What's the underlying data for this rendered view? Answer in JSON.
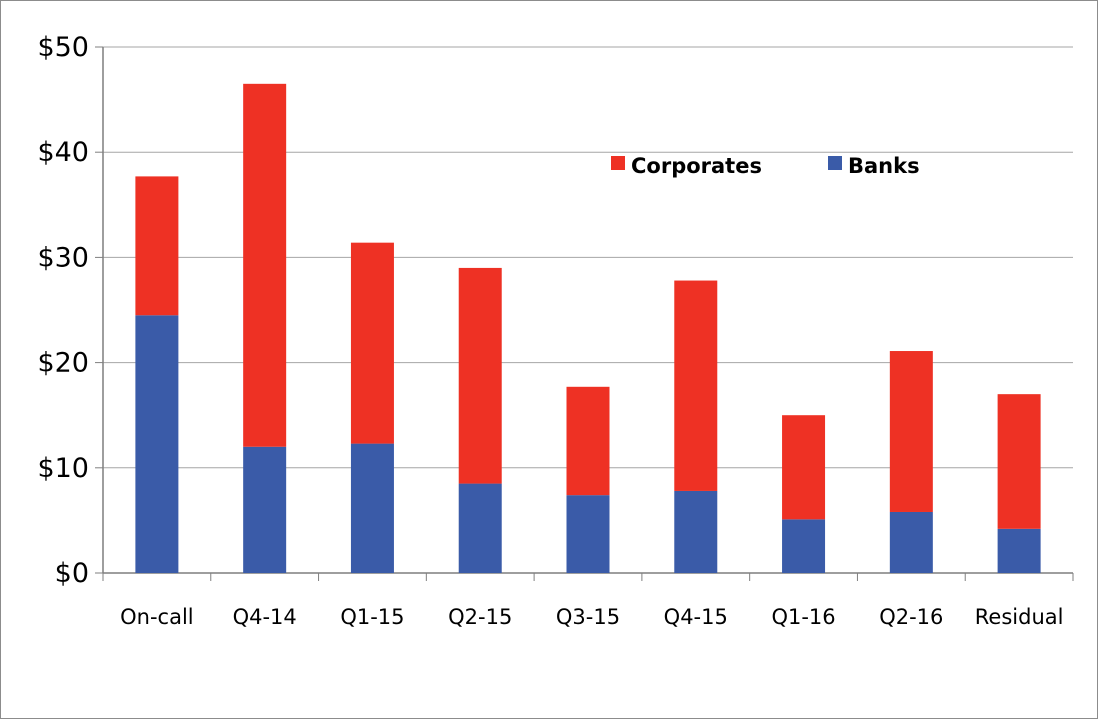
{
  "chart_data": {
    "type": "bar",
    "stacked": true,
    "categories": [
      "On-call",
      "Q4-14",
      "Q1-15",
      "Q2-15",
      "Q3-15",
      "Q4-15",
      "Q1-16",
      "Q2-16",
      "Residual"
    ],
    "series": [
      {
        "name": "Banks",
        "color": "#3a5ba8",
        "values": [
          24.5,
          12.0,
          12.3,
          8.5,
          7.4,
          7.8,
          5.1,
          5.8,
          4.2
        ]
      },
      {
        "name": "Corporates",
        "color": "#ee3124",
        "values": [
          13.2,
          34.5,
          19.1,
          20.5,
          10.3,
          20.0,
          9.9,
          15.3,
          12.8
        ]
      }
    ],
    "ylim": [
      0,
      50
    ],
    "yticks": [
      0,
      10,
      20,
      30,
      40,
      50
    ],
    "ytick_labels": [
      "$0",
      "$10",
      "$20",
      "$30",
      "$40",
      "$50"
    ],
    "legend": [
      "Corporates",
      "Banks"
    ],
    "legend_position": "upper-right",
    "grid": true,
    "title": "",
    "xlabel": "",
    "ylabel": ""
  }
}
